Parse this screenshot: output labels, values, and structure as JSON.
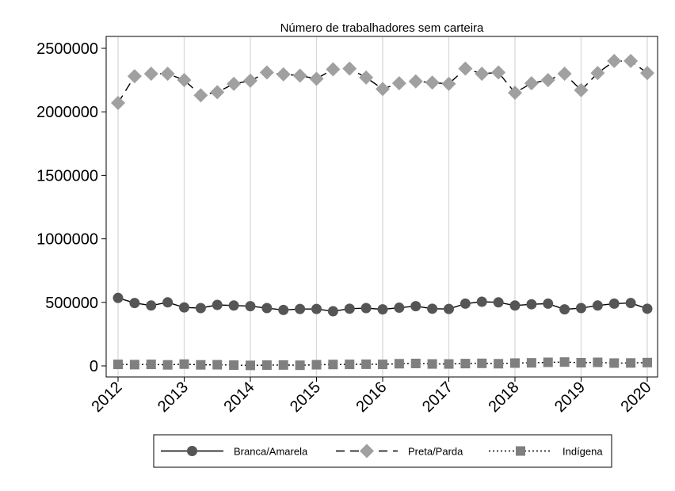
{
  "chart_data": {
    "type": "line",
    "title": "Número de trabalhadores sem carteira",
    "xlabel": "",
    "ylabel": "",
    "xlim": [
      2012,
      2020
    ],
    "ylim": [
      0,
      2500000
    ],
    "xticks": [
      "2012",
      "2013",
      "2014",
      "2015",
      "2016",
      "2017",
      "2018",
      "2019",
      "2020"
    ],
    "yticks": [
      "0",
      "500000",
      "1000000",
      "1500000",
      "2000000",
      "2500000"
    ],
    "grid": "vertical",
    "legend_position": "bottom",
    "x": [
      2012.0,
      2012.25,
      2012.5,
      2012.75,
      2013.0,
      2013.25,
      2013.5,
      2013.75,
      2014.0,
      2014.25,
      2014.5,
      2014.75,
      2015.0,
      2015.25,
      2015.5,
      2015.75,
      2016.0,
      2016.25,
      2016.5,
      2016.75,
      2017.0,
      2017.25,
      2017.5,
      2017.75,
      2018.0,
      2018.25,
      2018.5,
      2018.75,
      2019.0,
      2019.25,
      2019.5,
      2019.75,
      2020.0
    ],
    "series": [
      {
        "name": "Branca/Amarela",
        "line": "solid",
        "marker": "circle",
        "color": "#555555",
        "values": [
          535000,
          495000,
          475000,
          500000,
          460000,
          455000,
          480000,
          475000,
          470000,
          455000,
          440000,
          448000,
          448000,
          430000,
          450000,
          455000,
          445000,
          458000,
          470000,
          450000,
          448000,
          490000,
          505000,
          500000,
          475000,
          485000,
          490000,
          445000,
          455000,
          475000,
          490000,
          495000,
          450000
        ]
      },
      {
        "name": "Preta/Parda",
        "line": "dashed",
        "marker": "diamond",
        "color": "#a0a0a0",
        "values": [
          2070000,
          2280000,
          2300000,
          2300000,
          2250000,
          2130000,
          2155000,
          2220000,
          2245000,
          2310000,
          2295000,
          2285000,
          2260000,
          2335000,
          2340000,
          2270000,
          2180000,
          2225000,
          2240000,
          2230000,
          2220000,
          2340000,
          2300000,
          2310000,
          2150000,
          2225000,
          2250000,
          2300000,
          2170000,
          2305000,
          2400000,
          2400000,
          2305000
        ]
      },
      {
        "name": "Indígena",
        "line": "dotted",
        "marker": "square",
        "color": "#7f7f7f",
        "values": [
          12000,
          10000,
          12000,
          8000,
          14000,
          8000,
          9000,
          6000,
          4000,
          6000,
          7000,
          5000,
          9000,
          11000,
          12000,
          13000,
          12000,
          17000,
          19000,
          15000,
          15000,
          18000,
          20000,
          17000,
          22000,
          24000,
          28000,
          30000,
          25000,
          28000,
          22000,
          23000,
          26000
        ]
      }
    ]
  }
}
